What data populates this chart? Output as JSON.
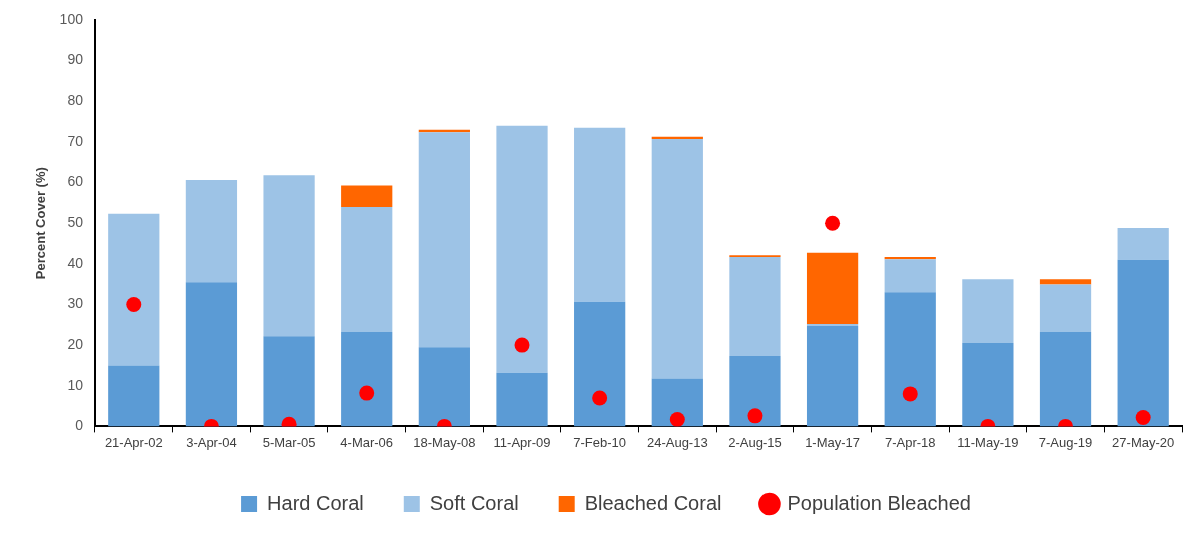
{
  "chart_data": {
    "type": "bar",
    "ylabel": "Percent Cover (%)",
    "stacked": true,
    "legend": "bottom",
    "grid": false,
    "marker": "circle",
    "categories": [
      "21-Apr-02",
      "3-Apr-04",
      "5-Mar-05",
      "4-Mar-06",
      "18-May-08",
      "11-Apr-09",
      "7-Feb-10",
      "24-Aug-13",
      "2-Aug-15",
      "1-May-17",
      "7-Apr-18",
      "11-May-19",
      "7-Aug-19",
      "27-May-20"
    ],
    "ylim": [
      0,
      100
    ],
    "yticks": [
      0,
      10,
      20,
      30,
      40,
      50,
      60,
      70,
      80,
      90,
      100
    ],
    "series": [
      {
        "name": "Hard Coral",
        "color": "#5b9bd5",
        "values": [
          15,
          35.5,
          22.2,
          23.2,
          19.5,
          13.2,
          30.7,
          11.8,
          17.3,
          24.7,
          33,
          20.5,
          23.2,
          41
        ]
      },
      {
        "name": "Soft Coral",
        "color": "#9dc3e6",
        "values": [
          37.3,
          25.1,
          39.6,
          30.8,
          52.9,
          60.8,
          42.8,
          58.9,
          24.4,
          0.5,
          8.1,
          15.7,
          11.7,
          7.8
        ]
      },
      {
        "name": "Bleached Coral",
        "color": "#ff6600",
        "values": [
          0,
          0,
          0,
          5.3,
          0.6,
          0,
          0,
          0.6,
          0.4,
          17.5,
          0.6,
          0,
          1.3,
          0
        ]
      },
      {
        "name": "Population Bleached",
        "type": "scatter",
        "color": "#ff0000",
        "x": [
          "21-Apr-02",
          "3-Apr-04",
          "5-Mar-05",
          "4-Mar-06",
          "18-May-08",
          "11-Apr-09",
          "7-Feb-10",
          "24-Aug-13",
          "2-Aug-15",
          "1-May-17",
          "7-Apr-18",
          "11-May-19",
          "7-Aug-19",
          "27-May-20"
        ],
        "values": [
          30,
          0,
          0.5,
          8.2,
          0,
          20,
          7,
          1.7,
          2.6,
          50,
          8,
          0,
          0,
          2.2
        ]
      }
    ]
  }
}
